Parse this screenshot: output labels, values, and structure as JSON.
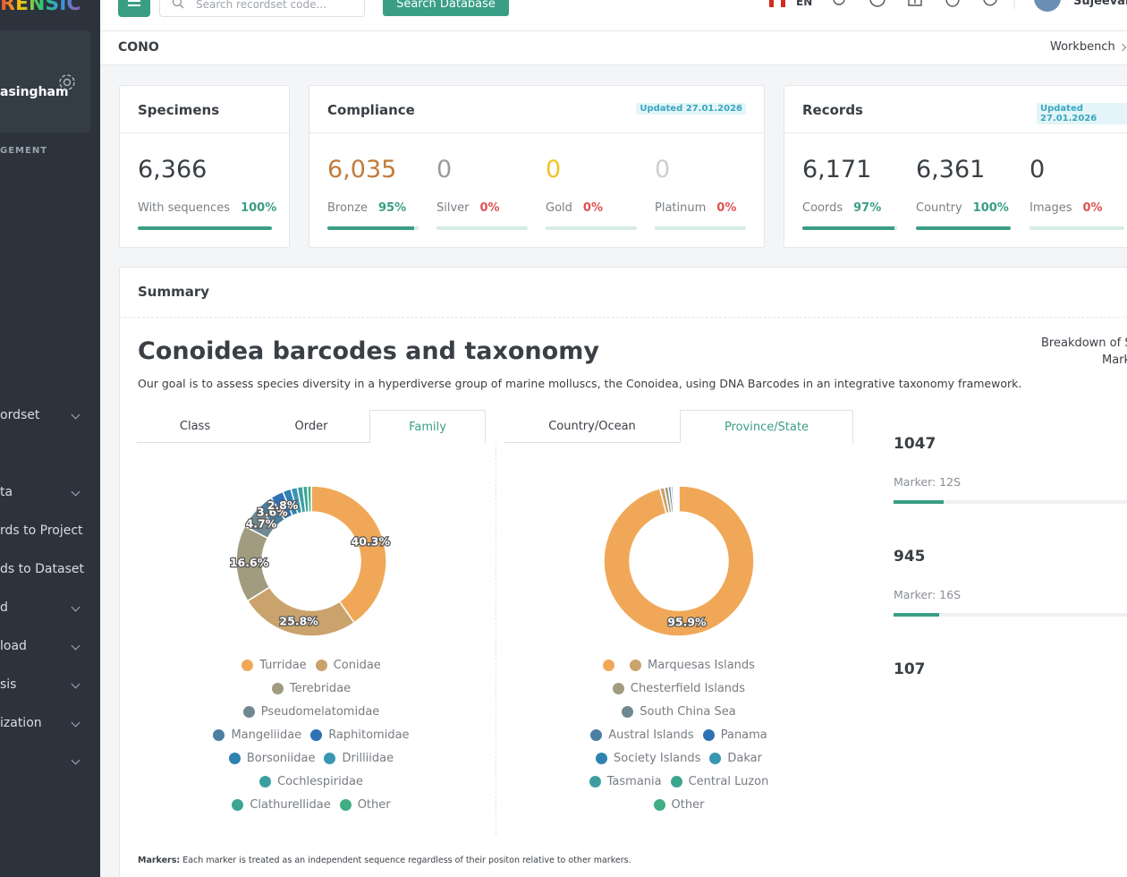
{
  "sidebar": {
    "brand": "RENSIC",
    "user": "asingham",
    "section": "GEMENT",
    "menu": [
      "ordset",
      "ta",
      "rds to Project",
      "ds to Dataset",
      "d",
      "load",
      "sis",
      "ization"
    ]
  },
  "header": {
    "search_placeholder": "Search recordset code...",
    "search_button": "Search Database",
    "language": "EN",
    "user": "Sujeevan"
  },
  "breadcrumb": {
    "project": "CONO",
    "link": "Workbench"
  },
  "cards": [
    {
      "title": "Specimens",
      "stats": [
        {
          "value": "6,366",
          "label": "With sequences",
          "color": "#3a3f45",
          "percent": {
            "value": 100,
            "label": "100%"
          }
        }
      ]
    },
    {
      "title": "Compliance",
      "badge": "Updated 27.01.2026",
      "stats": [
        {
          "value": "6,035",
          "label": "Bronze",
          "color": "#c27b3b",
          "percent": {
            "value": 95,
            "label": "95%"
          }
        },
        {
          "value": "0",
          "label": "Silver",
          "color": "#9b9b9b",
          "percent": {
            "value": 0,
            "label": "0%"
          }
        },
        {
          "value": "0",
          "label": "Gold",
          "color": "#f3c322",
          "percent": {
            "value": 0,
            "label": "0%"
          }
        },
        {
          "value": "0",
          "label": "Platinum",
          "color": "#cfcfcf",
          "percent": {
            "value": 0,
            "label": "0%"
          }
        }
      ]
    },
    {
      "title": "Records",
      "badge": "Updated 27.01.2026",
      "stats": [
        {
          "value": "6,171",
          "label": "Coords",
          "color": "#3a3f45",
          "percent": {
            "value": 97,
            "label": "97%"
          }
        },
        {
          "value": "6,361",
          "label": "Country",
          "color": "#3a3f45",
          "percent": {
            "value": 100,
            "label": "100%"
          }
        },
        {
          "value": "0",
          "label": "Images",
          "color": "#3a3f45",
          "percent": {
            "value": 0,
            "label": "0%"
          }
        }
      ]
    }
  ],
  "summary": {
    "title": "Summary",
    "heading": "Conoidea barcodes and taxonomy",
    "description": "Our goal is to assess species diversity in a hyperdiverse group of marine molluscs, the Conoidea, using DNA Barcodes in an integrative taxonomy framework.",
    "tabs_taxonomy": [
      "Class",
      "Order",
      "Family"
    ],
    "tabs_taxonomy_active": 2,
    "tabs_geography": [
      "Country/Ocean",
      "Province/State"
    ],
    "tabs_geography_active": 1,
    "breakdown_title": [
      "Breakdown of S",
      "Mark"
    ],
    "markers": [
      {
        "count": 1047,
        "name": "Marker: 12S"
      },
      {
        "count": 945,
        "name": "Marker: 16S"
      },
      {
        "count": 107
      }
    ],
    "note_label": "Markers:",
    "note": "Each marker is treated as an independent sequence regardless of their positon relative to other markers."
  },
  "chart_data": [
    {
      "type": "donut",
      "categories": [
        "Turridae",
        "Conidae",
        "Terebridae",
        "Pseudomelatomidae",
        "Mangeliidae",
        "Raphitomidae",
        "Borsoniidae",
        "Drilliidae",
        "Cochlespiridae",
        "Clathurellidae",
        "Other"
      ],
      "values": [
        40.3,
        25.8,
        16.6,
        4.7,
        3.6,
        2.8,
        1.8,
        1.4,
        1.2,
        1.0,
        0.8
      ],
      "value_labels": [
        "40.3%",
        "25.8%",
        "16.6%",
        "4.7%",
        "3.6%",
        "2.8%",
        null,
        null,
        null,
        null,
        null
      ],
      "colors": [
        "#f0a858",
        "#c9a26c",
        "#a19b80",
        "#6f8891",
        "#4a7fa1",
        "#2f71b5",
        "#2d82b1",
        "#3996b2",
        "#3b9fa2",
        "#3aa68f",
        "#40ae84"
      ]
    },
    {
      "type": "donut",
      "categories": [
        null,
        "Marquesas Islands",
        "Chesterfield Islands",
        "South China Sea",
        "Austral Islands",
        "Panama",
        "Society Islands",
        "Dakar",
        "Tasmania",
        "Central Luzon",
        "Other"
      ],
      "values": [
        95.9,
        1.0,
        0.8,
        0.6,
        0.4,
        0.3,
        0.3,
        0.2,
        0.2,
        0.1,
        0.2
      ],
      "value_labels": [
        "95.9%",
        null,
        null,
        null,
        null,
        null,
        null,
        null,
        null,
        null,
        null
      ],
      "colors": [
        "#f0a858",
        "#c9a26c",
        "#a19b80",
        "#6f8891",
        "#4a7fa1",
        "#2f71b5",
        "#2d82b1",
        "#3996b2",
        "#3b9fa2",
        "#3aa68f",
        "#40ae84"
      ]
    }
  ]
}
